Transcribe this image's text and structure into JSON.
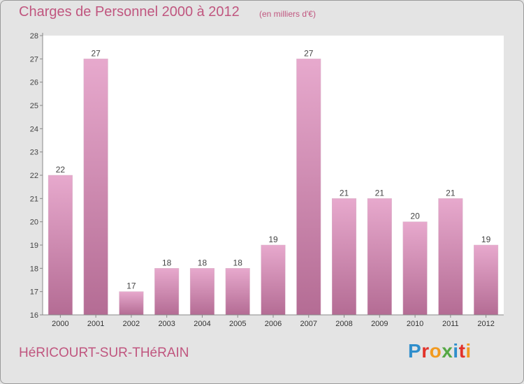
{
  "header": {
    "title": "Charges de Personnel 2000 à 2012",
    "subtitle": "(en milliers d'€)"
  },
  "footer": {
    "town": "HéRICOURT-SUR-THéRAIN",
    "brand": "Proxiti"
  },
  "colors": {
    "background": "#e4e4e4",
    "plot_area": "#ffffff",
    "bar_light": "#e7a9cd",
    "bar_dark": "#b46c94",
    "title": "#c0567f",
    "brand_letters": [
      "#2f8ecc",
      "#e2332b",
      "#f29a1f",
      "#55a844",
      "#2f8ecc",
      "#e2332b",
      "#f29a1f"
    ]
  },
  "chart_data": {
    "type": "bar",
    "title": "Charges de Personnel 2000 à 2012",
    "subtitle": "(en milliers d'€)",
    "categories": [
      "2000",
      "2001",
      "2002",
      "2003",
      "2004",
      "2005",
      "2006",
      "2007",
      "2008",
      "2009",
      "2010",
      "2011",
      "2012"
    ],
    "values": [
      22,
      27,
      17,
      18,
      18,
      18,
      19,
      27,
      21,
      21,
      20,
      21,
      19
    ],
    "xlabel": "",
    "ylabel": "",
    "ylim": [
      16,
      28
    ],
    "yticks": [
      16,
      17,
      18,
      19,
      20,
      21,
      22,
      23,
      24,
      25,
      26,
      27,
      28
    ],
    "grid": false,
    "legend": "none"
  }
}
